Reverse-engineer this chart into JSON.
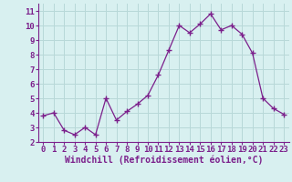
{
  "x": [
    0,
    1,
    2,
    3,
    4,
    5,
    6,
    7,
    8,
    9,
    10,
    11,
    12,
    13,
    14,
    15,
    16,
    17,
    18,
    19,
    20,
    21,
    22,
    23
  ],
  "y": [
    3.8,
    4.0,
    2.8,
    2.5,
    3.0,
    2.5,
    5.0,
    3.5,
    4.1,
    4.6,
    5.2,
    6.6,
    8.3,
    10.0,
    9.5,
    10.1,
    10.8,
    9.7,
    10.0,
    9.4,
    8.1,
    5.0,
    4.3,
    3.9
  ],
  "line_color": "#7B1F8B",
  "marker": "+",
  "marker_size": 4,
  "bg_color": "#d8f0f0",
  "grid_color": "#b8d8d8",
  "xlabel": "Windchill (Refroidissement éolien,°C)",
  "ylim": [
    2,
    11.5
  ],
  "xlim": [
    -0.5,
    23.5
  ],
  "yticks": [
    2,
    3,
    4,
    5,
    6,
    7,
    8,
    9,
    10,
    11
  ],
  "xticks": [
    0,
    1,
    2,
    3,
    4,
    5,
    6,
    7,
    8,
    9,
    10,
    11,
    12,
    13,
    14,
    15,
    16,
    17,
    18,
    19,
    20,
    21,
    22,
    23
  ],
  "tick_color": "#7B1F8B",
  "label_color": "#7B1F8B",
  "axis_color": "#7B1F8B",
  "tick_fontsize": 6.5,
  "xlabel_fontsize": 7
}
